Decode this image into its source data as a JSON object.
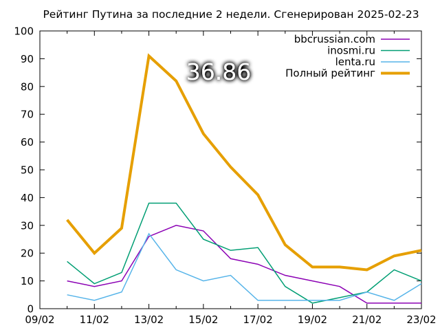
{
  "chart_data": {
    "type": "line",
    "title": "Рейтинг Путина за последние 2 недели. Сгенерирован 2025-02-23",
    "xlabel": "",
    "ylabel": "",
    "x_ticks": [
      "09/02",
      "11/02",
      "13/02",
      "15/02",
      "17/02",
      "19/02",
      "21/02",
      "23/02"
    ],
    "xlim": [
      "2025-02-09",
      "2025-02-23"
    ],
    "ylim": [
      0,
      100
    ],
    "y_ticks": [
      0,
      10,
      20,
      30,
      40,
      50,
      60,
      70,
      80,
      90,
      100
    ],
    "x": [
      "2025-02-10",
      "2025-02-11",
      "2025-02-12",
      "2025-02-13",
      "2025-02-14",
      "2025-02-15",
      "2025-02-16",
      "2025-02-17",
      "2025-02-18",
      "2025-02-19",
      "2025-02-20",
      "2025-02-21",
      "2025-02-22",
      "2025-02-23"
    ],
    "legend_position": "top-right",
    "grid": false,
    "highlight_value": "36.86",
    "series": [
      {
        "name": "bbcrussian.com",
        "color": "#8b00b4",
        "width": 1.5,
        "values": [
          10,
          8,
          10,
          26,
          30,
          28,
          18,
          16,
          12,
          10,
          8,
          2,
          2,
          2
        ]
      },
      {
        "name": "inosmi.ru",
        "color": "#009e73",
        "width": 1.5,
        "values": [
          17,
          9,
          13,
          38,
          38,
          25,
          21,
          22,
          8,
          2,
          4,
          6,
          14,
          10
        ]
      },
      {
        "name": "lenta.ru",
        "color": "#56b4e9",
        "width": 1.5,
        "values": [
          5,
          3,
          6,
          27,
          14,
          10,
          12,
          3,
          3,
          3,
          3,
          6,
          3,
          9
        ]
      },
      {
        "name": "Полный рейтинг",
        "color": "#e69f00",
        "width": 4,
        "values": [
          32,
          20,
          29,
          91,
          82,
          63,
          51,
          41,
          23,
          15,
          15,
          14,
          19,
          21
        ]
      }
    ]
  }
}
